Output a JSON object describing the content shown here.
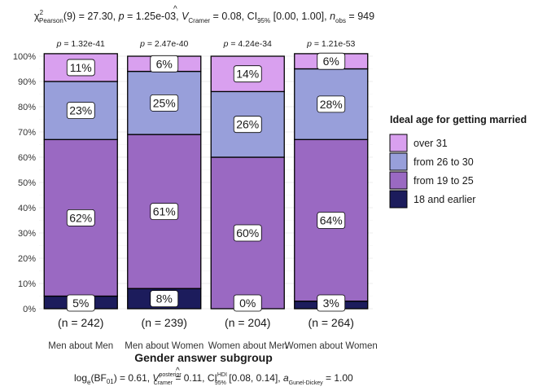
{
  "chart_data": {
    "type": "bar",
    "stacked": true,
    "percent": true,
    "title": {
      "stat_label": "χ",
      "stat_sup": "2",
      "stat_sub": "Pearson",
      "df": "(9) = 27.30, ",
      "p_label": "p",
      "p_value": " = 1.25e-03, ",
      "v_label": "V",
      "v_hat": "^",
      "v_sub": "Cramer",
      "v_value": " = 0.08, CI",
      "ci_sub": "95%",
      "ci_value": " [0.00, 1.00], ",
      "n_label": "n",
      "n_sub": "obs",
      "n_value": " = 949"
    },
    "caption": {
      "bf_label": "log",
      "bf_sub": "e",
      "bf_value": "(BF",
      "bf_01": "01",
      "bf_rest": ") = 0.61, ",
      "v_label": "V",
      "v_hat": "^",
      "v_sup": "posterior",
      "v_sub": "Cramer",
      "v_value": " = 0.11, CI",
      "ci_sup": "HDI",
      "ci_sub": "95%",
      "ci_value": " [0.08, 0.14], ",
      "a_label": "a",
      "a_sub": "Gunel-Dickey",
      "a_value": " = 1.00"
    },
    "xlabel": "Gender answer subgroup",
    "ylabel": "",
    "ylim": [
      0,
      1
    ],
    "y_ticks": [
      0,
      0.1,
      0.2,
      0.3,
      0.4,
      0.5,
      0.6,
      0.7,
      0.8,
      0.9,
      1.0
    ],
    "y_tick_labels": [
      "0%",
      "10%",
      "20%",
      "30%",
      "40%",
      "50%",
      "60%",
      "70%",
      "80%",
      "90%",
      "100%"
    ],
    "categories": [
      "Men about Men",
      "Men about Women",
      "Women about Men",
      "Women about Women"
    ],
    "counts": [
      "(n = 242)",
      "(n = 239)",
      "(n = 204)",
      "(n = 264)"
    ],
    "pvalues": [
      {
        "label": "p",
        "value": " = 1.32e-41"
      },
      {
        "label": "p",
        "value": " = 2.47e-40"
      },
      {
        "label": "p",
        "value": " = 4.24e-34"
      },
      {
        "label": "p",
        "value": " = 1.21e-53"
      }
    ],
    "series": [
      {
        "name": "18 and earlier",
        "color": "#1c1c5c",
        "values": [
          0.05,
          0.08,
          0.0,
          0.03
        ],
        "labels": [
          "5%",
          "8%",
          "0%",
          "3%"
        ]
      },
      {
        "name": "from 19 to 25",
        "color": "#9a69c2",
        "values": [
          0.62,
          0.61,
          0.6,
          0.64
        ],
        "labels": [
          "62%",
          "61%",
          "60%",
          "64%"
        ]
      },
      {
        "name": "from 26 to 30",
        "color": "#989fda",
        "values": [
          0.23,
          0.25,
          0.26,
          0.28
        ],
        "labels": [
          "23%",
          "25%",
          "26%",
          "28%"
        ]
      },
      {
        "name": "over 31",
        "color": "#d9a0ef",
        "values": [
          0.11,
          0.06,
          0.14,
          0.06
        ],
        "labels": [
          "11%",
          "6%",
          "14%",
          "6%"
        ]
      }
    ],
    "legend": {
      "title": "Ideal age for getting married",
      "position": "right",
      "order": [
        "over 31",
        "from 26 to 30",
        "from 19 to 25",
        "18 and earlier"
      ]
    },
    "grid": true
  }
}
